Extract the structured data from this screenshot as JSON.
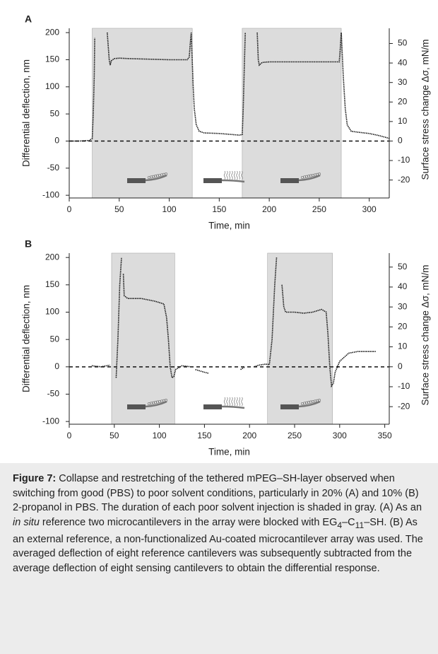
{
  "chart_data": [
    {
      "type": "line",
      "panel": "A",
      "ylabel": "Differential deflection, nm",
      "y2label": "Surface stress change Δσ, mN/m",
      "xlabel": "Time, min",
      "xlim": [
        0,
        320
      ],
      "xticks": [
        0,
        50,
        100,
        150,
        200,
        250,
        300
      ],
      "ylim": [
        -105,
        208
      ],
      "yticks": [
        -100,
        -50,
        0,
        50,
        100,
        150,
        200
      ],
      "y2lim": [
        -29.2,
        57.8
      ],
      "y2ticks": [
        -20,
        -10,
        0,
        10,
        20,
        30,
        40,
        50
      ],
      "hline": 0,
      "shade_color": "#dcdcdc",
      "shaded": [
        [
          23,
          123
        ],
        [
          173,
          272
        ]
      ],
      "series": [
        {
          "color": "#111",
          "x": [
            0,
            10,
            20,
            23,
            24,
            25,
            25.5,
            null,
            38,
            39,
            40,
            41,
            42,
            45,
            50,
            60,
            80,
            100,
            118,
            120,
            121,
            122,
            123,
            124,
            125,
            127,
            130,
            135,
            150,
            170,
            173,
            174,
            175,
            176,
            null,
            188,
            189,
            190,
            193,
            200,
            230,
            260,
            270,
            271,
            272,
            274,
            276,
            278,
            282,
            290,
            300,
            310,
            320
          ],
          "values": [
            0,
            0,
            1,
            5,
            50,
            120,
            190,
            null,
            200,
            175,
            150,
            140,
            148,
            152,
            153,
            152,
            151,
            150,
            150,
            155,
            180,
            200,
            150,
            100,
            60,
            30,
            18,
            15,
            14,
            11,
            12,
            60,
            130,
            200,
            null,
            200,
            150,
            140,
            145,
            146,
            146,
            146,
            146,
            170,
            200,
            120,
            60,
            30,
            18,
            16,
            14,
            10,
            5
          ]
        }
      ]
    },
    {
      "type": "line",
      "panel": "B",
      "ylabel": "Differential deflection, nm",
      "y2label": "Surface stress change Δσ, mN/m",
      "xlabel": "Time, min",
      "xlim": [
        0,
        355
      ],
      "xticks": [
        0,
        50,
        100,
        150,
        200,
        250,
        300,
        350
      ],
      "ylim": [
        -105,
        208
      ],
      "yticks": [
        -100,
        -50,
        0,
        50,
        100,
        150,
        200
      ],
      "y2lim": [
        -28.8,
        57
      ],
      "y2ticks": [
        -20,
        -10,
        0,
        10,
        20,
        30,
        40,
        50
      ],
      "hline": 0,
      "shade_color": "#dcdcdc",
      "shaded": [
        [
          47,
          117
        ],
        [
          220,
          292
        ]
      ],
      "series": [
        {
          "color": "#111",
          "x": [
            25,
            35,
            45,
            null,
            52,
            54,
            56,
            58,
            null,
            60,
            61,
            65,
            80,
            95,
            105,
            108,
            110,
            112,
            114,
            116,
            118,
            125,
            135,
            null,
            140,
            150,
            155,
            null,
            190,
            195,
            null,
            205,
            210,
            218,
            222,
            225,
            228,
            230,
            null,
            236,
            238,
            240,
            250,
            260,
            270,
            280,
            285,
            287,
            289,
            291,
            293,
            295,
            300,
            310,
            320,
            330,
            340
          ],
          "values": [
            2,
            0,
            3,
            null,
            -20,
            50,
            150,
            200,
            null,
            170,
            130,
            125,
            125,
            120,
            115,
            90,
            50,
            0,
            -20,
            -18,
            -5,
            2,
            0,
            null,
            -5,
            -10,
            -12,
            null,
            -5,
            0,
            null,
            0,
            3,
            5,
            4,
            50,
            150,
            200,
            null,
            150,
            110,
            100,
            100,
            98,
            100,
            105,
            100,
            60,
            0,
            -35,
            -30,
            -10,
            10,
            25,
            28,
            28,
            28
          ]
        }
      ]
    }
  ],
  "caption": {
    "label": "Figure 7:",
    "parts": [
      " Collapse and restretching of the tethered mPEG–SH-layer observed when switching from good (PBS) to poor solvent conditions, particularly in 20% (A) and 10% (B) 2-propanol in PBS. The duration of each poor solvent injection is shaded in gray. (A) As an ",
      "in situ",
      " reference two microcantilevers in the array were blocked with EG",
      "4",
      "–C",
      "11",
      "–SH. (B) As an external reference, a non-functionalized Au-coated microcantilever array was used. The averaged deflection of eight reference cantilevers was subsequently subtracted from the average deflection of eight sensing cantilevers to obtain the differential response."
    ]
  }
}
